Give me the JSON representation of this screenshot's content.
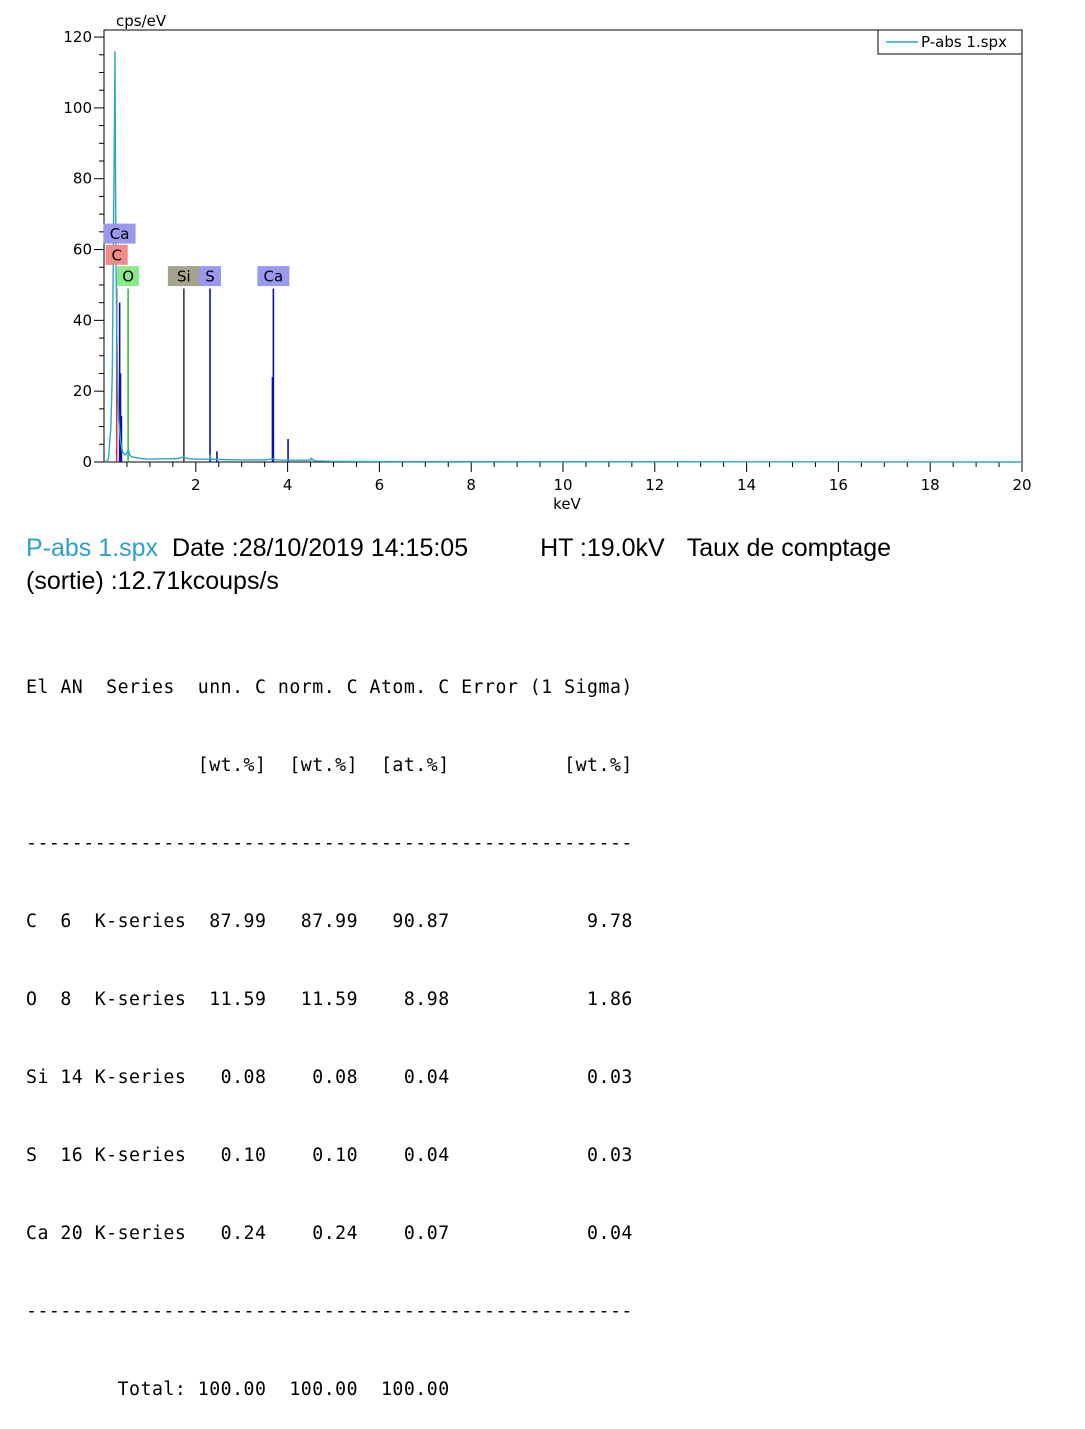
{
  "chart_data": {
    "type": "line",
    "ylabel": "cps/eV",
    "xlabel": "keV",
    "xlim": [
      0,
      20
    ],
    "ylim": [
      0,
      122
    ],
    "x_ticks": [
      2,
      4,
      6,
      8,
      10,
      12,
      14,
      16,
      18,
      20
    ],
    "y_ticks": [
      0,
      20,
      40,
      60,
      80,
      100,
      120
    ],
    "legend": {
      "label": "P-abs 1.spx",
      "position": "top-right"
    },
    "series": [
      {
        "name": "P-abs 1.spx",
        "color": "#2ba6c8",
        "points": [
          [
            0.05,
            0
          ],
          [
            0.1,
            1
          ],
          [
            0.12,
            5
          ],
          [
            0.15,
            10
          ],
          [
            0.18,
            25
          ],
          [
            0.2,
            55
          ],
          [
            0.22,
            83
          ],
          [
            0.24,
            116
          ],
          [
            0.26,
            60
          ],
          [
            0.28,
            35
          ],
          [
            0.3,
            20
          ],
          [
            0.32,
            12
          ],
          [
            0.36,
            6
          ],
          [
            0.4,
            3
          ],
          [
            0.45,
            2
          ],
          [
            0.5,
            2.5
          ],
          [
            0.53,
            3.5
          ],
          [
            0.56,
            2
          ],
          [
            0.6,
            1.5
          ],
          [
            0.8,
            1
          ],
          [
            1.0,
            0.8
          ],
          [
            1.2,
            0.9
          ],
          [
            1.4,
            0.9
          ],
          [
            1.6,
            1
          ],
          [
            1.74,
            1.5
          ],
          [
            1.8,
            1
          ],
          [
            2.0,
            0.8
          ],
          [
            2.3,
            0.8
          ],
          [
            2.31,
            2
          ],
          [
            2.33,
            0.8
          ],
          [
            2.5,
            0.7
          ],
          [
            3.0,
            0.6
          ],
          [
            3.5,
            0.6
          ],
          [
            3.69,
            0.9
          ],
          [
            3.75,
            0.6
          ],
          [
            4.0,
            0.5
          ],
          [
            4.5,
            0.5
          ],
          [
            4.51,
            1
          ],
          [
            4.6,
            0.3
          ],
          [
            5.0,
            0.2
          ],
          [
            6.0,
            0.1
          ],
          [
            20.0,
            0
          ]
        ]
      }
    ],
    "element_lines": [
      {
        "element": "C",
        "energy": 0.277,
        "height": 49,
        "color": "#d03a3a"
      },
      {
        "element": "O",
        "energy": 0.525,
        "height": 49,
        "color": "#36c436"
      },
      {
        "element": "Si",
        "energy": 1.74,
        "height": 49,
        "color": "#3d3d28"
      },
      {
        "element": "S",
        "energy": 2.31,
        "height": 49,
        "color": "#1010a8"
      },
      {
        "element": "Ca",
        "energy": 3.69,
        "height": 49,
        "color": "#1010a8"
      }
    ],
    "fitted_lines": [
      {
        "energy": 0.341,
        "height": 45
      },
      {
        "energy": 0.36,
        "height": 25
      },
      {
        "energy": 0.38,
        "height": 13
      },
      {
        "energy": 2.46,
        "height": 3
      },
      {
        "energy": 3.67,
        "height": 24
      },
      {
        "energy": 4.01,
        "height": 6.5
      }
    ],
    "element_labels": [
      {
        "text": "Ca",
        "energy": 0.34,
        "level": 64.5,
        "bg": "#9999ee"
      },
      {
        "text": "C",
        "energy": 0.277,
        "level": 58.5,
        "bg": "#ee8c8c"
      },
      {
        "text": "O",
        "energy": 0.525,
        "level": 52.5,
        "bg": "#8ce88c"
      },
      {
        "text": "Si",
        "energy": 1.74,
        "level": 52.5,
        "bg": "#a6a38c"
      },
      {
        "text": "S",
        "energy": 2.31,
        "level": 52.5,
        "bg": "#9999ee"
      },
      {
        "text": "Ca",
        "energy": 3.69,
        "level": 52.5,
        "bg": "#9999ee"
      }
    ]
  },
  "info": {
    "filename": "P-abs 1.spx",
    "date": "Date :28/10/2019 14:15:05",
    "ht": "HT :19.0kV",
    "rate_label": "Taux de comptage",
    "rate_value": "(sortie) :12.71kcoups/s"
  },
  "table": {
    "header1": "El AN  Series  unn. C norm. C Atom. C Error (1 Sigma)",
    "header2": "               [wt.%]  [wt.%]  [at.%]          [wt.%]",
    "divider": "-----------------------------------------------------",
    "rows": [
      "C  6  K-series  87.99   87.99   90.87            9.78",
      "O  8  K-series  11.59   11.59    8.98            1.86",
      "Si 14 K-series   0.08    0.08    0.04            0.03",
      "S  16 K-series   0.10    0.10    0.04            0.03",
      "Ca 20 K-series   0.24    0.24    0.07            0.04"
    ],
    "total": "        Total: 100.00  100.00  100.00"
  }
}
